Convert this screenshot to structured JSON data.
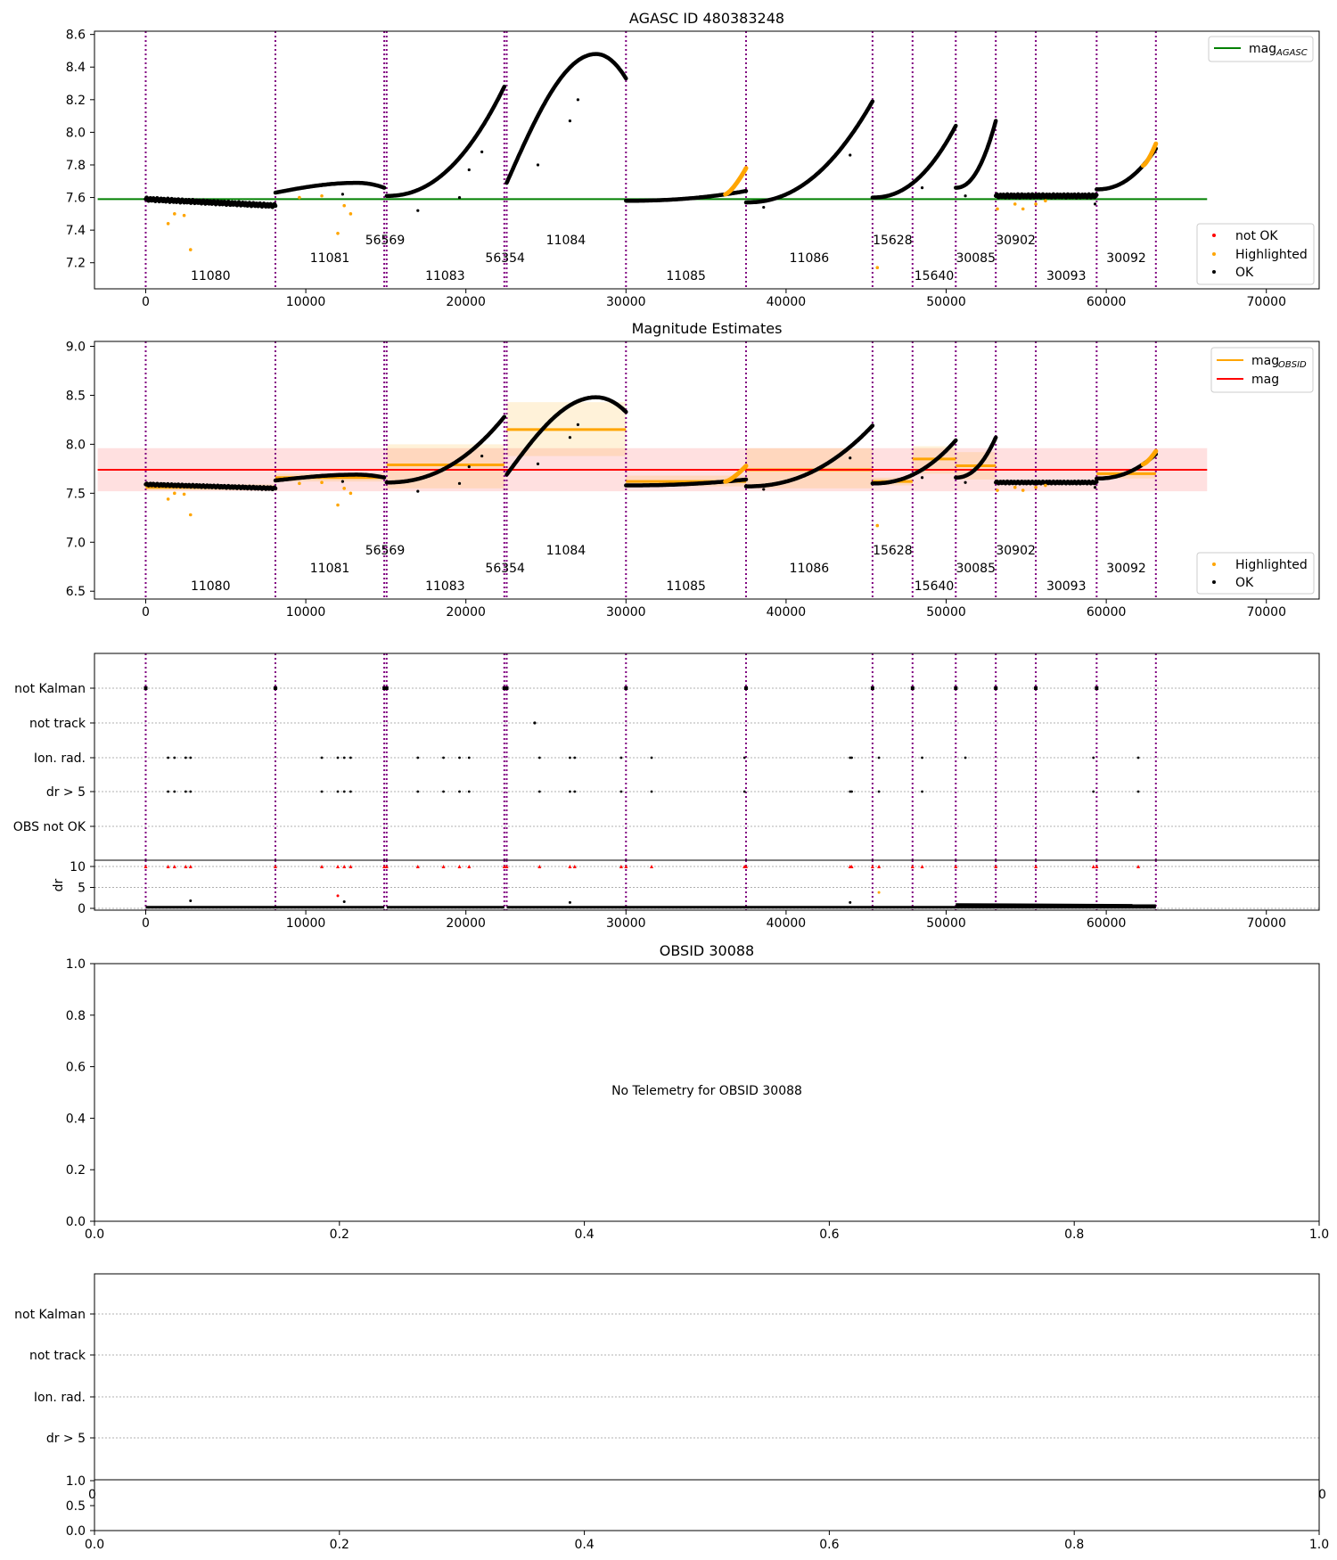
{
  "figure": {
    "panel1_title": "AGASC ID 480383248",
    "panel2_title": "Magnitude Estimates",
    "panel4_title": "OBSID 30088",
    "no_telemetry_text": "No Telemetry for OBSID 30088"
  },
  "chart_data": [
    {
      "type": "scatter",
      "title": "AGASC ID 480383248",
      "xlim": [
        -3200,
        73300
      ],
      "ylim": [
        7.04,
        8.62
      ],
      "x_ticks": [
        0,
        10000,
        20000,
        30000,
        40000,
        50000,
        60000,
        70000
      ],
      "y_ticks": [
        7.2,
        7.4,
        7.6,
        7.8,
        8.0,
        8.2,
        8.4,
        8.6
      ],
      "mag_agasc": 7.59,
      "mag_agasc_xrange": [
        -3000,
        66300
      ],
      "legend_lines": [
        {
          "label": "mag",
          "sub": "AGASC",
          "color": "#008000"
        }
      ],
      "legend_points": [
        {
          "label": "not OK",
          "color": "#ff0000"
        },
        {
          "label": "Highlighted",
          "color": "#ffa500"
        },
        {
          "label": "OK",
          "color": "#000000"
        }
      ],
      "obsid_boundaries": [
        0,
        8100,
        14900,
        15050,
        22400,
        22550,
        30000,
        37500,
        45400,
        47900,
        50600,
        53100,
        55600,
        59400,
        63100
      ],
      "obsid_labels": [
        {
          "text": "11080",
          "x": 4050,
          "row": 3
        },
        {
          "text": "11081",
          "x": 11500,
          "row": 2
        },
        {
          "text": "56569",
          "x": 14950,
          "row": 1
        },
        {
          "text": "11083",
          "x": 18700,
          "row": 3
        },
        {
          "text": "56354",
          "x": 22450,
          "row": 2
        },
        {
          "text": "11084",
          "x": 26250,
          "row": 1
        },
        {
          "text": "11085",
          "x": 33750,
          "row": 3
        },
        {
          "text": "11086",
          "x": 41450,
          "row": 2
        },
        {
          "text": "15628",
          "x": 46650,
          "row": 1
        },
        {
          "text": "15640",
          "x": 49250,
          "row": 3
        },
        {
          "text": "30085",
          "x": 51850,
          "row": 2
        },
        {
          "text": "30902",
          "x": 54350,
          "row": 1
        },
        {
          "text": "30093",
          "x": 57500,
          "row": 3
        },
        {
          "text": "30092",
          "x": 61250,
          "row": 2
        }
      ],
      "segments": [
        {
          "x0": 0,
          "x1": 8100,
          "m0": 7.59,
          "m1": 7.55,
          "shape": "linear"
        },
        {
          "x0": 8100,
          "x1": 14900,
          "m0": 7.63,
          "m1": 7.66,
          "shape": "hump",
          "peak": 7.69
        },
        {
          "x0": 15050,
          "x1": 22400,
          "m0": 7.61,
          "m1": 8.28,
          "shape": "rise"
        },
        {
          "x0": 22550,
          "x1": 30000,
          "m0": 7.69,
          "m1": 8.33,
          "shape": "hump",
          "peak": 8.48
        },
        {
          "x0": 30000,
          "x1": 37500,
          "m0": 7.58,
          "m1": 7.64,
          "shape": "rise",
          "orange_tail": [
            36200,
            37500,
            7.78
          ]
        },
        {
          "x0": 37500,
          "x1": 45400,
          "m0": 7.57,
          "m1": 8.19,
          "shape": "rise"
        },
        {
          "x0": 45400,
          "x1": 50600,
          "m0": 7.6,
          "m1": 8.04,
          "shape": "rise"
        },
        {
          "x0": 50600,
          "x1": 53100,
          "m0": 7.66,
          "m1": 8.07,
          "shape": "rise"
        },
        {
          "x0": 53100,
          "x1": 59400,
          "m0": 7.61,
          "m1": 7.61,
          "shape": "linear"
        },
        {
          "x0": 59400,
          "x1": 63100,
          "m0": 7.65,
          "m1": 7.9,
          "shape": "rise",
          "orange_tail": [
            62300,
            63100,
            7.93
          ]
        }
      ],
      "outliers": [
        {
          "x": 1400,
          "y": 7.44,
          "c": "orange"
        },
        {
          "x": 1800,
          "y": 7.5,
          "c": "orange"
        },
        {
          "x": 2400,
          "y": 7.49,
          "c": "orange"
        },
        {
          "x": 2800,
          "y": 7.28,
          "c": "orange"
        },
        {
          "x": 12000,
          "y": 7.38,
          "c": "orange"
        },
        {
          "x": 12400,
          "y": 7.55,
          "c": "orange"
        },
        {
          "x": 12800,
          "y": 7.5,
          "c": "orange"
        },
        {
          "x": 9600,
          "y": 7.6,
          "c": "orange"
        },
        {
          "x": 11000,
          "y": 7.61,
          "c": "orange"
        },
        {
          "x": 45700,
          "y": 7.17,
          "c": "orange"
        },
        {
          "x": 53200,
          "y": 7.53,
          "c": "orange"
        },
        {
          "x": 54300,
          "y": 7.56,
          "c": "orange"
        },
        {
          "x": 54800,
          "y": 7.53,
          "c": "orange"
        },
        {
          "x": 55600,
          "y": 7.56,
          "c": "orange"
        },
        {
          "x": 56200,
          "y": 7.58,
          "c": "orange"
        },
        {
          "x": 17000,
          "y": 7.52,
          "c": "black"
        },
        {
          "x": 19600,
          "y": 7.6,
          "c": "black"
        },
        {
          "x": 20200,
          "y": 7.77,
          "c": "black"
        },
        {
          "x": 21000,
          "y": 7.88,
          "c": "black"
        },
        {
          "x": 24500,
          "y": 7.8,
          "c": "black"
        },
        {
          "x": 26500,
          "y": 8.07,
          "c": "black"
        },
        {
          "x": 27000,
          "y": 8.2,
          "c": "black"
        },
        {
          "x": 44000,
          "y": 7.86,
          "c": "black"
        },
        {
          "x": 48500,
          "y": 7.66,
          "c": "black"
        },
        {
          "x": 51200,
          "y": 7.61,
          "c": "black"
        },
        {
          "x": 59300,
          "y": 7.56,
          "c": "black"
        },
        {
          "x": 12300,
          "y": 7.62,
          "c": "black"
        },
        {
          "x": 38600,
          "y": 7.54,
          "c": "black"
        }
      ]
    },
    {
      "type": "scatter",
      "title": "Magnitude Estimates",
      "xlim": [
        -3200,
        73300
      ],
      "ylim": [
        6.42,
        9.05
      ],
      "x_ticks": [
        0,
        10000,
        20000,
        30000,
        40000,
        50000,
        60000,
        70000
      ],
      "y_ticks": [
        6.5,
        7.0,
        7.5,
        8.0,
        8.5,
        9.0
      ],
      "mag": 7.74,
      "mag_band": [
        7.52,
        7.96
      ],
      "mag_xrange": [
        -3000,
        66300
      ],
      "legend_lines": [
        {
          "label": "mag",
          "sub": "OBSID",
          "color": "#ffa500"
        },
        {
          "label": "mag",
          "sub": "",
          "color": "#ff0000"
        }
      ],
      "legend_points": [
        {
          "label": "Highlighted",
          "color": "#ffa500"
        },
        {
          "label": "OK",
          "color": "#000000"
        }
      ],
      "mag_obsid": [
        {
          "x0": 0,
          "x1": 8100,
          "m": 7.56,
          "lo": 7.53,
          "hi": 7.59
        },
        {
          "x0": 8100,
          "x1": 14900,
          "m": 7.66,
          "lo": 7.62,
          "hi": 7.7
        },
        {
          "x0": 15050,
          "x1": 22400,
          "m": 7.79,
          "lo": 7.55,
          "hi": 8.0
        },
        {
          "x0": 22550,
          "x1": 30000,
          "m": 8.15,
          "lo": 7.88,
          "hi": 8.43
        },
        {
          "x0": 30000,
          "x1": 37500,
          "m": 7.62,
          "lo": 7.57,
          "hi": 7.68
        },
        {
          "x0": 37500,
          "x1": 45400,
          "m": 7.74,
          "lo": 7.55,
          "hi": 7.96
        },
        {
          "x0": 45400,
          "x1": 47900,
          "m": 7.62,
          "lo": 7.58,
          "hi": 7.66
        },
        {
          "x0": 47900,
          "x1": 50600,
          "m": 7.85,
          "lo": 7.7,
          "hi": 7.98
        },
        {
          "x0": 50600,
          "x1": 53100,
          "m": 7.78,
          "lo": 7.64,
          "hi": 7.92
        },
        {
          "x0": 53100,
          "x1": 59400,
          "m": 7.61,
          "lo": 7.59,
          "hi": 7.63
        },
        {
          "x0": 59400,
          "x1": 63100,
          "m": 7.7,
          "lo": 7.65,
          "hi": 7.75
        }
      ]
    },
    {
      "type": "scatter",
      "title": "",
      "flag_rows": [
        "not Kalman",
        "not track",
        "Ion. rad.",
        "dr > 5",
        "OBS not OK"
      ],
      "dr_ylabel": "dr",
      "dr_ticks": [
        0,
        5,
        10
      ],
      "x_ticks": [
        0,
        10000,
        20000,
        30000,
        40000,
        50000,
        60000,
        70000
      ],
      "not_kalman_x": [
        0,
        8100,
        14900,
        15050,
        22400,
        22550,
        30000,
        37500,
        45400,
        47900,
        50600,
        53100,
        55600,
        59400
      ],
      "not_track_x": [
        24300
      ],
      "ion_rad_x": [
        1400,
        1800,
        2500,
        2800,
        11000,
        12000,
        12400,
        12800,
        17000,
        18600,
        19600,
        20200,
        24600,
        26500,
        26800,
        29700,
        31600,
        37400,
        44000,
        44100,
        45800,
        48500,
        51200,
        59200,
        62000
      ],
      "dr_gt5_x": [
        1400,
        1800,
        2500,
        2800,
        11000,
        12000,
        12400,
        12800,
        17000,
        18600,
        19600,
        20200,
        24600,
        26500,
        26800,
        29700,
        31600,
        37400,
        44000,
        44100,
        45800,
        48500,
        59200,
        62000
      ],
      "dr_outliers": [
        {
          "x": 12000,
          "dr": 3.0
        },
        {
          "x": 12400,
          "dr": 1.6
        },
        {
          "x": 2800,
          "dr": 1.8
        },
        {
          "x": 26500,
          "dr": 1.4
        },
        {
          "x": 45800,
          "dr": 3.8
        },
        {
          "x": 44000,
          "dr": 1.4
        }
      ]
    },
    {
      "type": "scatter",
      "title": "OBSID 30088",
      "annotation": "No Telemetry for OBSID 30088",
      "xlim": [
        0,
        1
      ],
      "ylim": [
        0,
        1
      ],
      "x_ticks": [
        "0.0",
        "0.2",
        "0.4",
        "0.6",
        "0.8",
        "1.0"
      ],
      "y_ticks": [
        "0.0",
        "0.2",
        "0.4",
        "0.6",
        "0.8",
        "1.0"
      ]
    },
    {
      "type": "scatter",
      "title": "",
      "flag_rows": [
        "not Kalman",
        "not track",
        "Ion. rad.",
        "dr > 5"
      ],
      "x_ticks": [
        "0.0",
        "0.2",
        "0.4",
        "0.6",
        "0.8",
        "1.0"
      ],
      "y_ticks_dr": [
        "0.0",
        "0.5",
        "1.0"
      ],
      "edge_tick_left": "0",
      "edge_tick_right": "0"
    }
  ]
}
